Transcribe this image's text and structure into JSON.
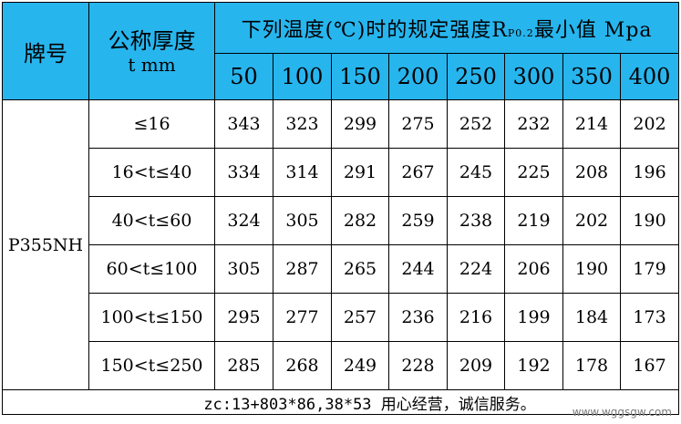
{
  "header": {
    "grade_label": "牌号",
    "thickness_label": "公称厚度",
    "thickness_unit": "t mm",
    "title_prefix": "下列温度(℃)时的规定强度R",
    "title_sub": "P0.2",
    "title_suffix": "最小值 Mpa",
    "temperatures": [
      "50",
      "100",
      "150",
      "200",
      "250",
      "300",
      "350",
      "400"
    ]
  },
  "grade": "P355NH",
  "rows": [
    {
      "range": "≤16",
      "values": [
        "343",
        "323",
        "299",
        "275",
        "252",
        "232",
        "214",
        "202"
      ]
    },
    {
      "range": "16<t≤40",
      "values": [
        "334",
        "314",
        "291",
        "267",
        "245",
        "225",
        "208",
        "196"
      ]
    },
    {
      "range": "40<t≤60",
      "values": [
        "324",
        "305",
        "282",
        "259",
        "238",
        "219",
        "202",
        "190"
      ]
    },
    {
      "range": "60<t≤100",
      "values": [
        "305",
        "287",
        "265",
        "244",
        "224",
        "206",
        "190",
        "179"
      ]
    },
    {
      "range": "100<t≤150",
      "values": [
        "295",
        "277",
        "257",
        "236",
        "216",
        "199",
        "184",
        "173"
      ]
    },
    {
      "range": "150<t≤250",
      "values": [
        "285",
        "268",
        "249",
        "228",
        "209",
        "192",
        "178",
        "167"
      ]
    }
  ],
  "footer": "zc:13+803*86,38*53 用心经营，诚信服务。",
  "watermark": "www.wggsgw.com",
  "colors": {
    "header_bg": "#27b5ee",
    "border": "#000000"
  }
}
